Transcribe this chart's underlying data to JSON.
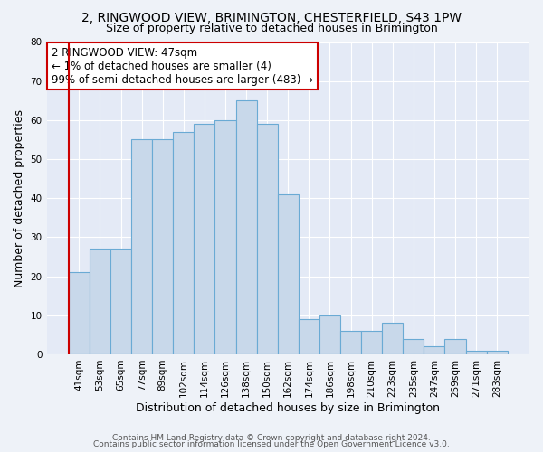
{
  "title1": "2, RINGWOOD VIEW, BRIMINGTON, CHESTERFIELD, S43 1PW",
  "title2": "Size of property relative to detached houses in Brimington",
  "xlabel": "Distribution of detached houses by size in Brimington",
  "ylabel": "Number of detached properties",
  "categories": [
    "41sqm",
    "53sqm",
    "65sqm",
    "77sqm",
    "89sqm",
    "102sqm",
    "114sqm",
    "126sqm",
    "138sqm",
    "150sqm",
    "162sqm",
    "174sqm",
    "186sqm",
    "198sqm",
    "210sqm",
    "223sqm",
    "235sqm",
    "247sqm",
    "259sqm",
    "271sqm",
    "283sqm"
  ],
  "values": [
    21,
    27,
    27,
    55,
    55,
    57,
    59,
    60,
    65,
    59,
    41,
    9,
    10,
    6,
    6,
    8,
    4,
    2,
    4,
    1,
    1
  ],
  "bar_color": "#c8d8ea",
  "bar_edge_color": "#6aaad4",
  "highlight_line_color": "#cc0000",
  "annotation_text": "2 RINGWOOD VIEW: 47sqm\n← 1% of detached houses are smaller (4)\n99% of semi-detached houses are larger (483) →",
  "annotation_box_color": "white",
  "annotation_box_edge_color": "#cc0000",
  "ylim": [
    0,
    80
  ],
  "yticks": [
    0,
    10,
    20,
    30,
    40,
    50,
    60,
    70,
    80
  ],
  "footer_text1": "Contains HM Land Registry data © Crown copyright and database right 2024.",
  "footer_text2": "Contains public sector information licensed under the Open Government Licence v3.0.",
  "bg_color": "#eef2f8",
  "plot_bg_color": "#e4eaf6",
  "title1_fontsize": 10,
  "title2_fontsize": 9,
  "annotation_fontsize": 8.5,
  "ylabel_fontsize": 9,
  "xlabel_fontsize": 9,
  "tick_fontsize": 7.5,
  "footer_fontsize": 6.5
}
